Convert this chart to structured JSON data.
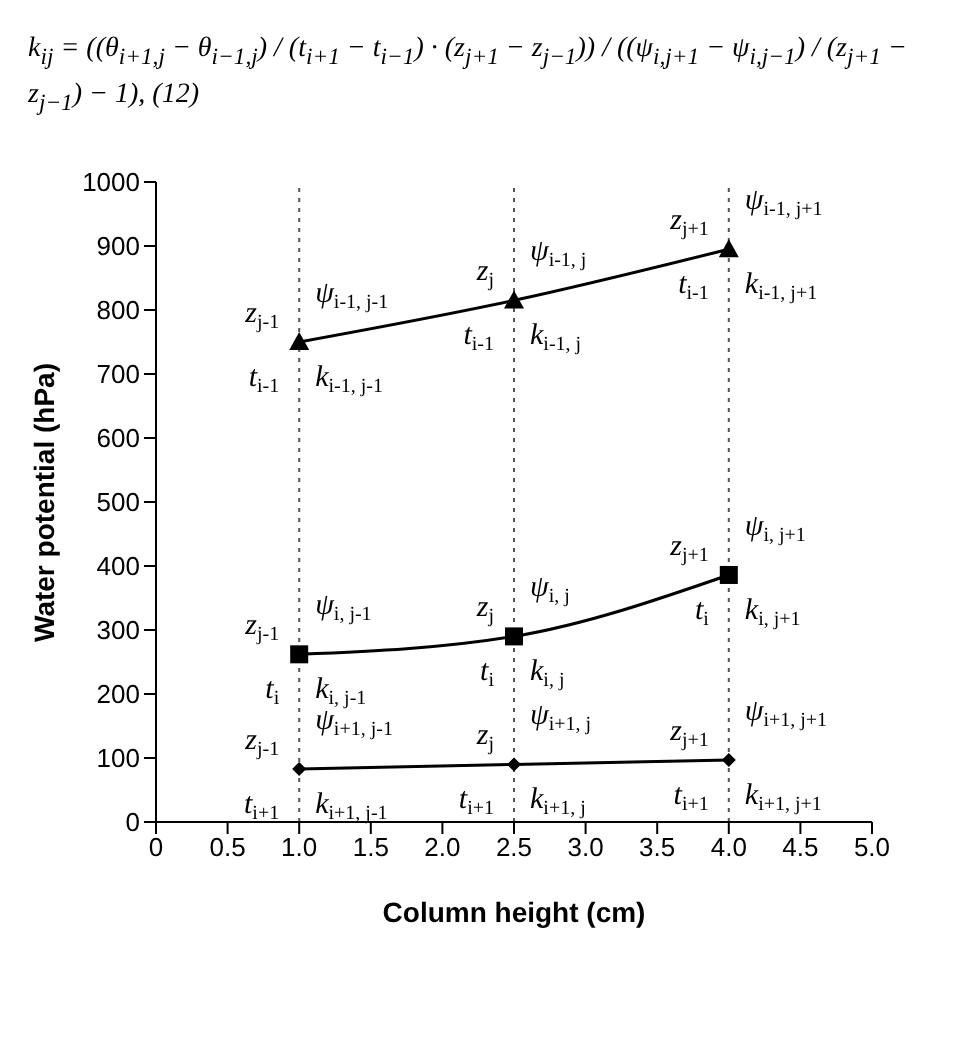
{
  "chart_data": {
    "type": "line",
    "xlabel": "Column height (cm)",
    "ylabel": "Water potential (hPa)",
    "x": [
      1.0,
      2.5,
      4.0
    ],
    "series": [
      {
        "color": "#000000",
        "marker": "triangle",
        "values": [
          750,
          815,
          895
        ]
      },
      {
        "color": "#000000",
        "marker": "square",
        "values": [
          262,
          290,
          386
        ]
      },
      {
        "color": "#000000",
        "marker": "diamond",
        "values": [
          83,
          90,
          97
        ]
      }
    ],
    "xlim": [
      0,
      5
    ],
    "xticks": [
      0,
      0.5,
      {
        "value": 1,
        "label": "1.0"
      },
      1.5,
      {
        "value": 2,
        "label": "2.0"
      },
      2.5,
      {
        "value": 3,
        "label": "3.0"
      },
      3.5,
      {
        "value": 4,
        "label": "4.0"
      },
      4.5,
      {
        "value": 5,
        "label": "5.0"
      }
    ],
    "ylim": [
      0,
      1000
    ],
    "yticks": [
      0,
      100,
      200,
      300,
      400,
      500,
      600,
      700,
      800,
      900,
      1000
    ],
    "grid": false,
    "legend": false,
    "line_style": "solid",
    "ref_lines": [
      {
        "axis": "x",
        "value": 1.0,
        "line_style": "dotted",
        "color": "#555555"
      },
      {
        "axis": "x",
        "value": 2.5,
        "line_style": "dotted",
        "color": "#555555"
      },
      {
        "axis": "x",
        "value": 4.0,
        "line_style": "dotted",
        "color": "#555555"
      }
    ],
    "annotations": [
      "k$_{ij}$ = ((θ$_{i+1,j}$ − θ$_{i−1,j}$) / (t$_{i+1}$ − t$_{i−1}$) · (z$_{j+1}$ − z$_{j−1}$)) / ((ψ$_{i,j+1}$ − ψ$_{i,j−1}$) / (z$_{j+1}$ − z$_{j−1}$) − 1),   (12)",
      {
        "text": "z$_{j-1}$",
        "x": 1.0,
        "y": 750
      },
      {
        "text": "ψ$_{i-1, j-1}$",
        "x": 1.0,
        "y": 750
      },
      {
        "text": "t$_{i-1}$",
        "x": 1.0,
        "y": 750
      },
      {
        "text": "k$_{i-1, j-1}$",
        "x": 1.0,
        "y": 750
      },
      {
        "text": "z$_{j}$",
        "x": 2.5,
        "y": 815
      },
      {
        "text": "ψ$_{i-1, j}$",
        "x": 2.5,
        "y": 815
      },
      {
        "text": "t$_{i-1}$",
        "x": 2.5,
        "y": 815
      },
      {
        "text": "k$_{i-1, j}$",
        "x": 2.5,
        "y": 815
      },
      {
        "text": "z$_{j+1}$",
        "x": 4.0,
        "y": 895
      },
      {
        "text": "ψ$_{i-1, j+1}$",
        "x": 4.0,
        "y": 895
      },
      {
        "text": "t$_{i-1}$",
        "x": 4.0,
        "y": 895
      },
      {
        "text": "k$_{i-1, j+1}$",
        "x": 4.0,
        "y": 895
      },
      {
        "text": "z$_{j-1}$",
        "x": 1.0,
        "y": 262
      },
      {
        "text": "ψ$_{i, j-1}$",
        "x": 1.0,
        "y": 262
      },
      {
        "text": "t$_{i}$",
        "x": 1.0,
        "y": 262
      },
      {
        "text": "k$_{i, j-1}$",
        "x": 1.0,
        "y": 262
      },
      {
        "text": "z$_{j}$",
        "x": 2.5,
        "y": 290
      },
      {
        "text": "ψ$_{i, j}$",
        "x": 2.5,
        "y": 290
      },
      {
        "text": "t$_{i}$",
        "x": 2.5,
        "y": 290
      },
      {
        "text": "k$_{i, j}$",
        "x": 2.5,
        "y": 290
      },
      {
        "text": "z$_{j+1}$",
        "x": 4.0,
        "y": 386
      },
      {
        "text": "ψ$_{i, j+1}$",
        "x": 4.0,
        "y": 386
      },
      {
        "text": "t$_{i}$",
        "x": 4.0,
        "y": 386
      },
      {
        "text": "k$_{i, j+1}$",
        "x": 4.0,
        "y": 386
      },
      {
        "text": "z$_{j-1}$",
        "x": 1.0,
        "y": 83
      },
      {
        "text": "ψ$_{i+1, j-1}$",
        "x": 1.0,
        "y": 83
      },
      {
        "text": "t$_{i+1}$",
        "x": 1.0,
        "y": 83
      },
      {
        "text": "k$_{i+1, j-1}$",
        "x": 1.0,
        "y": 83
      },
      {
        "text": "z$_{j}$",
        "x": 2.5,
        "y": 90
      },
      {
        "text": "ψ$_{i+1, j}$",
        "x": 2.5,
        "y": 90
      },
      {
        "text": "t$_{i+1}$",
        "x": 2.5,
        "y": 90
      },
      {
        "text": "k$_{i+1, j}$",
        "x": 2.5,
        "y": 90
      },
      {
        "text": "z$_{j+1}$",
        "x": 4.0,
        "y": 97
      },
      {
        "text": "ψ$_{i+1, j+1}$",
        "x": 4.0,
        "y": 97
      },
      {
        "text": "t$_{i+1}$",
        "x": 4.0,
        "y": 97
      },
      {
        "text": "k$_{i+1, j+1}$",
        "x": 4.0,
        "y": 97
      }
    ]
  }
}
